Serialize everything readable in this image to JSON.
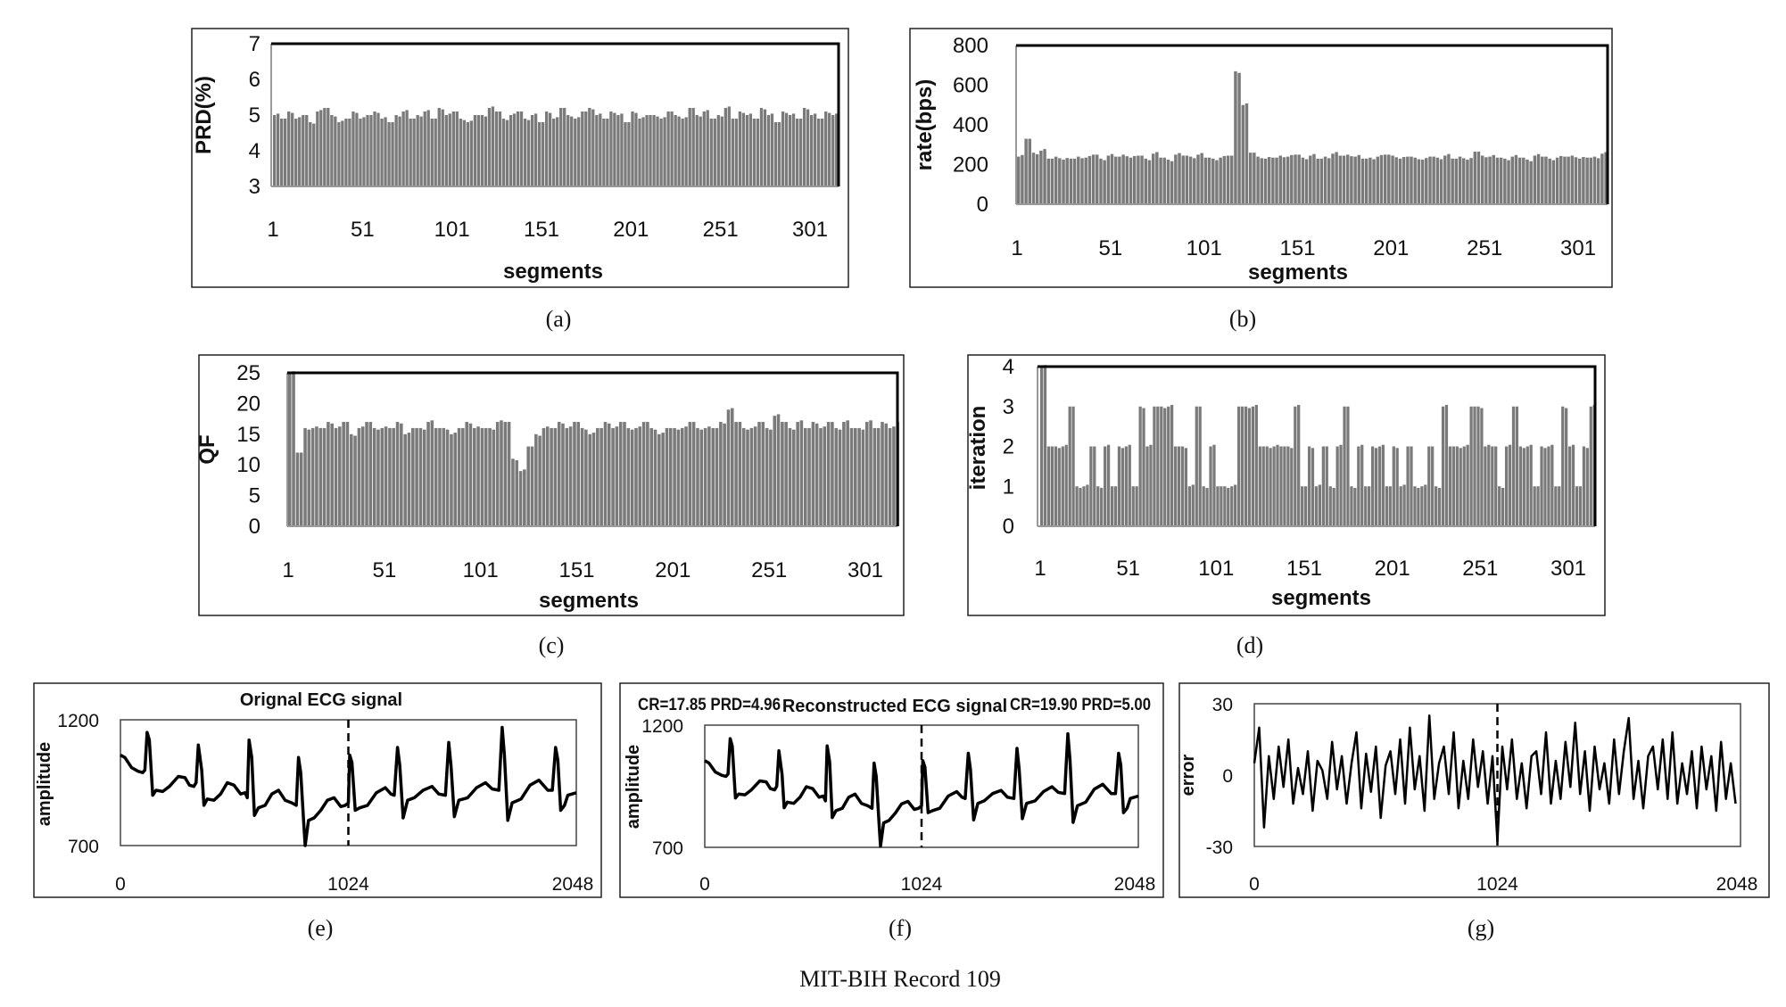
{
  "figure_caption": "MIT-BIH Record 109",
  "chart_data": [
    {
      "id": "a",
      "panel_label": "(a)",
      "type": "bar",
      "xlabel": "segments",
      "ylabel": "PRD(%)",
      "ylim": [
        3,
        7
      ],
      "yticks": [
        "7",
        "6",
        "5",
        "4",
        "3"
      ],
      "xticks": [
        "1",
        "51",
        "101",
        "151",
        "201",
        "251",
        "301"
      ],
      "x_start": 1,
      "x_step": 4,
      "values": [
        5.0,
        4.9,
        5.1,
        4.9,
        5.0,
        4.8,
        5.1,
        5.2,
        5.0,
        4.8,
        4.9,
        5.1,
        4.9,
        5.0,
        5.1,
        4.9,
        4.8,
        5.0,
        5.1,
        4.9,
        5.0,
        5.1,
        4.9,
        5.2,
        5.0,
        5.1,
        4.9,
        4.8,
        5.0,
        5.0,
        5.2,
        5.1,
        4.9,
        5.0,
        5.1,
        4.9,
        5.0,
        4.8,
        5.1,
        4.9,
        5.2,
        5.0,
        4.9,
        5.1,
        5.2,
        5.0,
        4.9,
        5.1,
        5.0,
        4.8,
        5.1,
        4.9,
        5.0,
        5.0,
        4.9,
        5.1,
        5.0,
        4.9,
        5.2,
        5.0,
        5.1,
        4.9,
        5.0,
        5.2,
        4.9,
        5.1,
        5.0,
        4.9,
        5.2,
        5.0,
        4.8,
        5.1,
        5.0,
        4.9,
        5.2,
        5.0,
        4.9,
        5.1,
        5.0,
        5.0
      ],
      "bar_color": "#7a7a7a"
    },
    {
      "id": "b",
      "panel_label": "(b)",
      "type": "bar",
      "xlabel": "segments",
      "ylabel": "rate(bps)",
      "ylim": [
        0,
        800
      ],
      "yticks": [
        "800",
        "600",
        "400",
        "200",
        "0"
      ],
      "xticks": [
        "1",
        "51",
        "101",
        "151",
        "201",
        "251",
        "301"
      ],
      "x_start": 1,
      "x_step": 4,
      "values": [
        240,
        330,
        260,
        270,
        230,
        240,
        225,
        230,
        240,
        235,
        250,
        230,
        245,
        240,
        250,
        235,
        245,
        230,
        255,
        235,
        225,
        250,
        245,
        240,
        250,
        235,
        230,
        235,
        245,
        670,
        500,
        260,
        240,
        230,
        235,
        245,
        240,
        250,
        235,
        245,
        230,
        240,
        255,
        245,
        250,
        240,
        230,
        235,
        240,
        250,
        245,
        230,
        240,
        235,
        225,
        240,
        235,
        245,
        230,
        240,
        225,
        265,
        245,
        240,
        235,
        230,
        240,
        235,
        225,
        245,
        240,
        230,
        235,
        240,
        245,
        230,
        235,
        240,
        255,
        235
      ],
      "bar_color": "#7a7a7a"
    },
    {
      "id": "c",
      "panel_label": "(c)",
      "type": "bar",
      "xlabel": "segments",
      "ylabel": "QF",
      "ylim": [
        0,
        25
      ],
      "yticks": [
        "25",
        "20",
        "15",
        "10",
        "5",
        "0"
      ],
      "xticks": [
        "1",
        "51",
        "101",
        "151",
        "201",
        "251",
        "301"
      ],
      "x_start": 1,
      "x_step": 4,
      "values": [
        25,
        12,
        16,
        16,
        16,
        17,
        16,
        17,
        15,
        16,
        17,
        16,
        16,
        16,
        17,
        15,
        16,
        16,
        17,
        16,
        16,
        15,
        16,
        17,
        16,
        16,
        16,
        17,
        17,
        11,
        9,
        13,
        15,
        16,
        16,
        17,
        16,
        17,
        16,
        15,
        16,
        17,
        16,
        17,
        16,
        16,
        17,
        16,
        15,
        16,
        16,
        16,
        17,
        16,
        16,
        16,
        17,
        19,
        17,
        16,
        16,
        17,
        16,
        18,
        17,
        16,
        17,
        16,
        17,
        16,
        17,
        16,
        17,
        16,
        16,
        17,
        16,
        17,
        16,
        17
      ],
      "bar_color": "#7a7a7a"
    },
    {
      "id": "d",
      "panel_label": "(d)",
      "type": "bar",
      "xlabel": "segments",
      "ylabel": "iteration",
      "ylim": [
        0,
        4
      ],
      "yticks": [
        "4",
        "3",
        "2",
        "1",
        "0"
      ],
      "xticks": [
        "1",
        "51",
        "101",
        "151",
        "201",
        "251",
        "301"
      ],
      "x_start": 1,
      "x_step": 4,
      "values": [
        4,
        2,
        2,
        2,
        3,
        1,
        1,
        2,
        1,
        2,
        1,
        2,
        2,
        1,
        3,
        2,
        3,
        3,
        3,
        2,
        2,
        1,
        3,
        1,
        2,
        1,
        1,
        1,
        3,
        3,
        3,
        2,
        2,
        2,
        2,
        2,
        3,
        1,
        2,
        1,
        2,
        1,
        2,
        3,
        1,
        2,
        1,
        2,
        2,
        1,
        2,
        1,
        2,
        1,
        1,
        2,
        1,
        3,
        2,
        2,
        2,
        3,
        3,
        2,
        2,
        1,
        2,
        3,
        2,
        2,
        1,
        2,
        2,
        1,
        3,
        2,
        1,
        2,
        3,
        2
      ],
      "bar_color": "#7a7a7a"
    },
    {
      "id": "e",
      "panel_label": "(e)",
      "type": "line",
      "title": "Orignal ECG signal",
      "ylabel": "amplitude",
      "xlim": [
        0,
        2048
      ],
      "ylim": [
        700,
        1200
      ],
      "xticks": [
        "0",
        "1024",
        "2048"
      ],
      "yticks": [
        "1200",
        "700"
      ],
      "divider_x": 1024,
      "x": [
        0,
        20,
        50,
        80,
        100,
        110,
        120,
        130,
        145,
        160,
        190,
        220,
        260,
        290,
        310,
        330,
        340,
        350,
        365,
        375,
        390,
        420,
        450,
        480,
        510,
        540,
        560,
        570,
        578,
        590,
        602,
        620,
        650,
        680,
        710,
        740,
        770,
        790,
        800,
        810,
        825,
        830,
        845,
        870,
        900,
        930,
        960,
        990,
        1010,
        1024,
        1030,
        1040,
        1055,
        1075,
        1110,
        1150,
        1190,
        1215,
        1230,
        1245,
        1255,
        1270,
        1290,
        1320,
        1360,
        1400,
        1430,
        1460,
        1475,
        1485,
        1500,
        1520,
        1560,
        1600,
        1640,
        1670,
        1700,
        1715,
        1725,
        1740,
        1760,
        1800,
        1840,
        1880,
        1920,
        1940,
        1955,
        1965,
        1978,
        1995,
        2010,
        2048
      ],
      "y": [
        1060,
        1050,
        1010,
        995,
        990,
        1000,
        1150,
        1120,
        900,
        920,
        915,
        935,
        975,
        970,
        940,
        935,
        950,
        1100,
        1000,
        860,
        885,
        880,
        905,
        950,
        940,
        905,
        910,
        890,
        1120,
        1050,
        820,
        850,
        860,
        905,
        920,
        880,
        870,
        860,
        1050,
        990,
        770,
        700,
        800,
        810,
        840,
        880,
        890,
        855,
        860,
        870,
        1060,
        1030,
        840,
        850,
        860,
        910,
        930,
        905,
        900,
        1090,
        1020,
        810,
        880,
        890,
        920,
        935,
        905,
        900,
        1110,
        1020,
        815,
        880,
        890,
        930,
        950,
        925,
        920,
        1170,
        1060,
        800,
        870,
        885,
        940,
        960,
        920,
        920,
        1090,
        1040,
        840,
        860,
        900,
        910
      ]
    },
    {
      "id": "f",
      "panel_label": "(f)",
      "type": "line",
      "title": "Reconstructed ECG signal",
      "ylabel": "amplitude",
      "annotation_left": "CR=17.85 PRD=4.96",
      "annotation_right": "CR=19.90 PRD=5.00",
      "xlim": [
        0,
        2048
      ],
      "ylim": [
        700,
        1200
      ],
      "xticks": [
        "0",
        "1024",
        "2048"
      ],
      "yticks": [
        "1200",
        "700"
      ],
      "divider_x": 1024,
      "x": [
        0,
        20,
        50,
        80,
        100,
        110,
        120,
        130,
        145,
        160,
        190,
        220,
        260,
        290,
        310,
        330,
        340,
        350,
        365,
        375,
        390,
        420,
        450,
        480,
        510,
        540,
        560,
        570,
        578,
        590,
        602,
        620,
        650,
        680,
        710,
        740,
        770,
        790,
        800,
        810,
        825,
        830,
        845,
        870,
        900,
        930,
        960,
        990,
        1010,
        1024,
        1030,
        1040,
        1055,
        1075,
        1110,
        1150,
        1190,
        1215,
        1230,
        1245,
        1255,
        1270,
        1290,
        1320,
        1360,
        1400,
        1430,
        1460,
        1475,
        1485,
        1500,
        1520,
        1560,
        1600,
        1640,
        1670,
        1700,
        1715,
        1725,
        1740,
        1760,
        1800,
        1840,
        1880,
        1920,
        1940,
        1955,
        1965,
        1978,
        1995,
        2010,
        2048
      ],
      "y": [
        1055,
        1045,
        1008,
        995,
        990,
        1000,
        1145,
        1115,
        902,
        918,
        915,
        935,
        972,
        968,
        940,
        935,
        950,
        1095,
        1000,
        862,
        885,
        880,
        905,
        948,
        940,
        905,
        910,
        890,
        1115,
        1050,
        822,
        850,
        860,
        905,
        918,
        880,
        870,
        860,
        1045,
        990,
        772,
        705,
        800,
        810,
        840,
        878,
        888,
        855,
        860,
        870,
        1055,
        1028,
        842,
        850,
        860,
        910,
        928,
        905,
        900,
        1085,
        1020,
        812,
        880,
        890,
        920,
        933,
        905,
        900,
        1105,
        1020,
        817,
        880,
        890,
        928,
        948,
        925,
        920,
        1165,
        1058,
        802,
        870,
        885,
        938,
        958,
        920,
        920,
        1085,
        1038,
        842,
        860,
        900,
        910
      ]
    },
    {
      "id": "g",
      "panel_label": "(g)",
      "type": "line",
      "ylabel": "error",
      "xlim": [
        0,
        2048
      ],
      "ylim": [
        -30,
        30
      ],
      "xticks": [
        "0",
        "1024",
        "2048"
      ],
      "yticks": [
        "30",
        "0",
        "-30"
      ],
      "divider_x": 1024,
      "x_start": 0,
      "x_step": 20.48,
      "values": [
        5,
        20,
        -22,
        8,
        -10,
        12,
        -5,
        15,
        -12,
        3,
        -8,
        10,
        -15,
        6,
        2,
        -10,
        14,
        -6,
        8,
        -12,
        5,
        18,
        -14,
        9,
        -7,
        12,
        -18,
        4,
        10,
        -8,
        15,
        -12,
        20,
        -6,
        8,
        -15,
        25,
        -10,
        5,
        12,
        -8,
        18,
        -14,
        6,
        -10,
        15,
        -5,
        10,
        -12,
        8,
        -28,
        12,
        -6,
        15,
        -10,
        5,
        -14,
        8,
        10,
        -8,
        18,
        -12,
        6,
        -10,
        14,
        -5,
        22,
        -8,
        10,
        -15,
        12,
        -6,
        5,
        -12,
        15,
        -8,
        10,
        24,
        -10,
        6,
        -14,
        8,
        12,
        -6,
        15,
        -10,
        18,
        -12,
        5,
        -8,
        10,
        -14,
        12,
        -6,
        8,
        -15,
        14,
        -10,
        5,
        -12
      ]
    }
  ]
}
